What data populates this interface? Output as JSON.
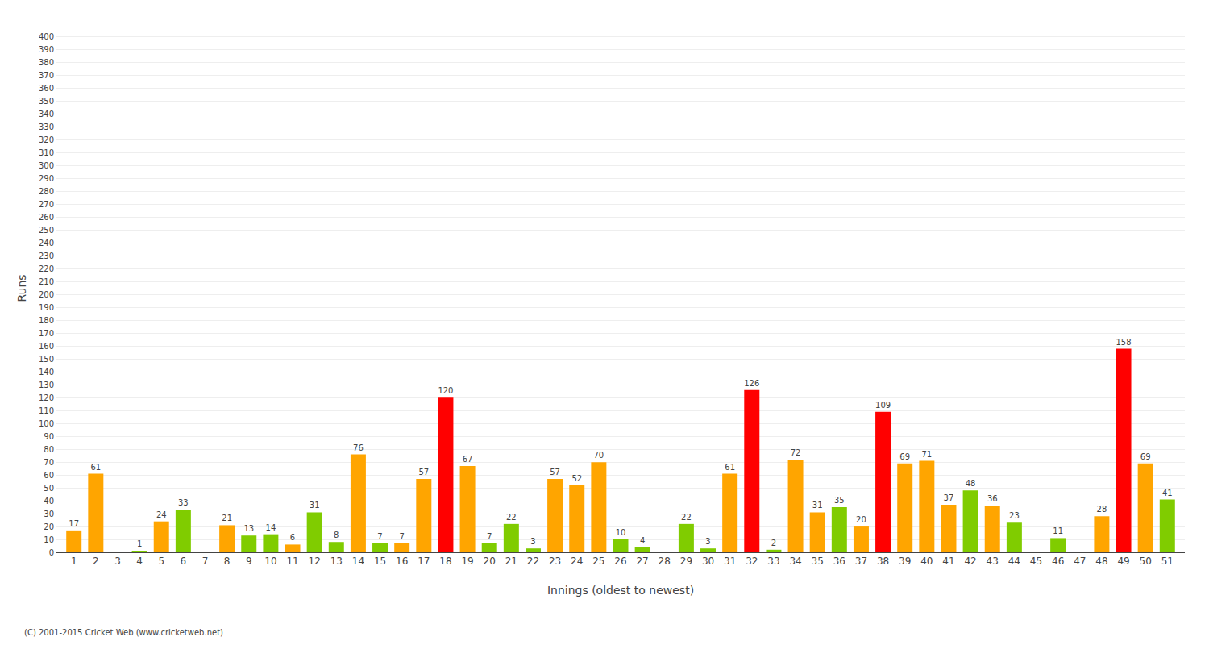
{
  "chart_data": {
    "type": "bar",
    "xlabel": "Innings (oldest to newest)",
    "ylabel": "Runs",
    "categories": [
      "1",
      "2",
      "3",
      "4",
      "5",
      "6",
      "7",
      "8",
      "9",
      "10",
      "11",
      "12",
      "13",
      "14",
      "15",
      "16",
      "17",
      "18",
      "19",
      "20",
      "21",
      "22",
      "23",
      "24",
      "25",
      "26",
      "27",
      "28",
      "29",
      "30",
      "31",
      "32",
      "33",
      "34",
      "35",
      "36",
      "37",
      "38",
      "39",
      "40",
      "41",
      "42",
      "43",
      "44",
      "45",
      "46",
      "47",
      "48",
      "49",
      "50",
      "51"
    ],
    "values": [
      17,
      61,
      0,
      1,
      24,
      33,
      0,
      21,
      13,
      14,
      6,
      31,
      8,
      76,
      7,
      7,
      57,
      120,
      67,
      7,
      22,
      3,
      57,
      52,
      70,
      10,
      4,
      0,
      22,
      3,
      61,
      126,
      2,
      72,
      31,
      35,
      20,
      109,
      69,
      71,
      37,
      48,
      36,
      23,
      0,
      11,
      0,
      28,
      158,
      69,
      41
    ],
    "value_labels": [
      "17",
      "61",
      null,
      "1",
      "24",
      "33",
      null,
      "21",
      "13",
      "14",
      "6",
      "31",
      "8",
      "76",
      "7",
      "7",
      "57",
      "120",
      "67",
      "7",
      "22",
      "3",
      "57",
      "52",
      "70",
      "10",
      "4",
      null,
      "22",
      "3",
      "61",
      "126",
      "2",
      "72",
      "31",
      "35",
      "20",
      "109",
      "69",
      "71",
      "37",
      "48",
      "36",
      "23",
      null,
      "11",
      null,
      "28",
      "158",
      "69",
      "41"
    ],
    "colors": [
      "#ffa500",
      "#ffa500",
      "#80cc00",
      "#80cc00",
      "#ffa500",
      "#80cc00",
      "#ffa500",
      "#ffa500",
      "#80cc00",
      "#80cc00",
      "#ffa500",
      "#80cc00",
      "#80cc00",
      "#ffa500",
      "#80cc00",
      "#ffa500",
      "#ffa500",
      "#ff0000",
      "#ffa500",
      "#80cc00",
      "#80cc00",
      "#80cc00",
      "#ffa500",
      "#ffa500",
      "#ffa500",
      "#80cc00",
      "#80cc00",
      "#80cc00",
      "#80cc00",
      "#80cc00",
      "#ffa500",
      "#ff0000",
      "#80cc00",
      "#ffa500",
      "#ffa500",
      "#80cc00",
      "#ffa500",
      "#ff0000",
      "#ffa500",
      "#ffa500",
      "#ffa500",
      "#80cc00",
      "#ffa500",
      "#80cc00",
      "#ffa500",
      "#80cc00",
      "#80cc00",
      "#ffa500",
      "#ff0000",
      "#ffa500",
      "#80cc00"
    ],
    "ylim": [
      0,
      410
    ],
    "yticks": [
      0,
      10,
      20,
      30,
      40,
      50,
      60,
      70,
      80,
      90,
      100,
      110,
      120,
      130,
      140,
      150,
      160,
      170,
      180,
      190,
      200,
      210,
      220,
      230,
      240,
      250,
      260,
      270,
      280,
      290,
      300,
      310,
      320,
      330,
      340,
      350,
      360,
      370,
      380,
      390,
      400
    ],
    "grid": true,
    "data_labels": true,
    "annotations": [
      "(C) 2001-2015 Cricket Web (www.cricketweb.net)"
    ]
  }
}
